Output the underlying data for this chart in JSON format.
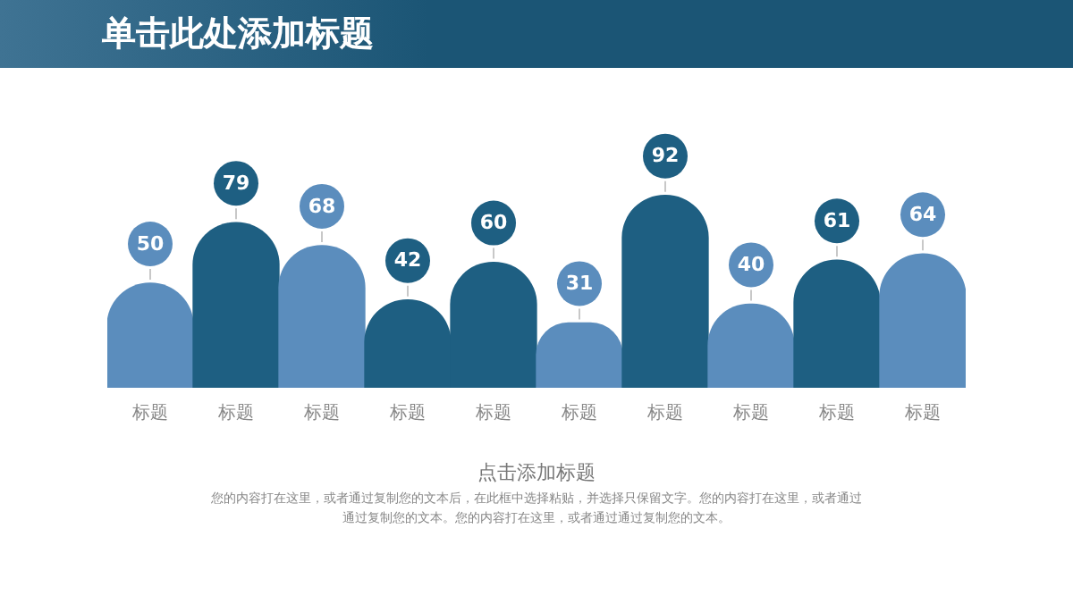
{
  "chart_data": {
    "type": "bar",
    "title": "单击此处添加标题",
    "subtitle": "点击添加标题",
    "annotations": [
      "您的内容打在这里，或者通过复制您的文本后，在此框中选择粘贴，并选择只保留文字。您的内容打在这里，或者通过通过复制您的文本。您的内容打在这里，或者通过通过复制您的文本。"
    ],
    "categories": [
      "标题",
      "标题",
      "标题",
      "标题",
      "标题",
      "标题",
      "标题",
      "标题",
      "标题",
      "标题"
    ],
    "values": [
      50,
      79,
      68,
      42,
      60,
      31,
      92,
      40,
      61,
      64
    ],
    "colors": [
      "#5b8dbd",
      "#1e5f82",
      "#5b8dbd",
      "#1e5f82",
      "#1e5f82",
      "#5b8dbd",
      "#1e5f82",
      "#5b8dbd",
      "#1e5f82",
      "#5b8dbd"
    ],
    "data_labels": true,
    "grid": false,
    "legend": false
  }
}
